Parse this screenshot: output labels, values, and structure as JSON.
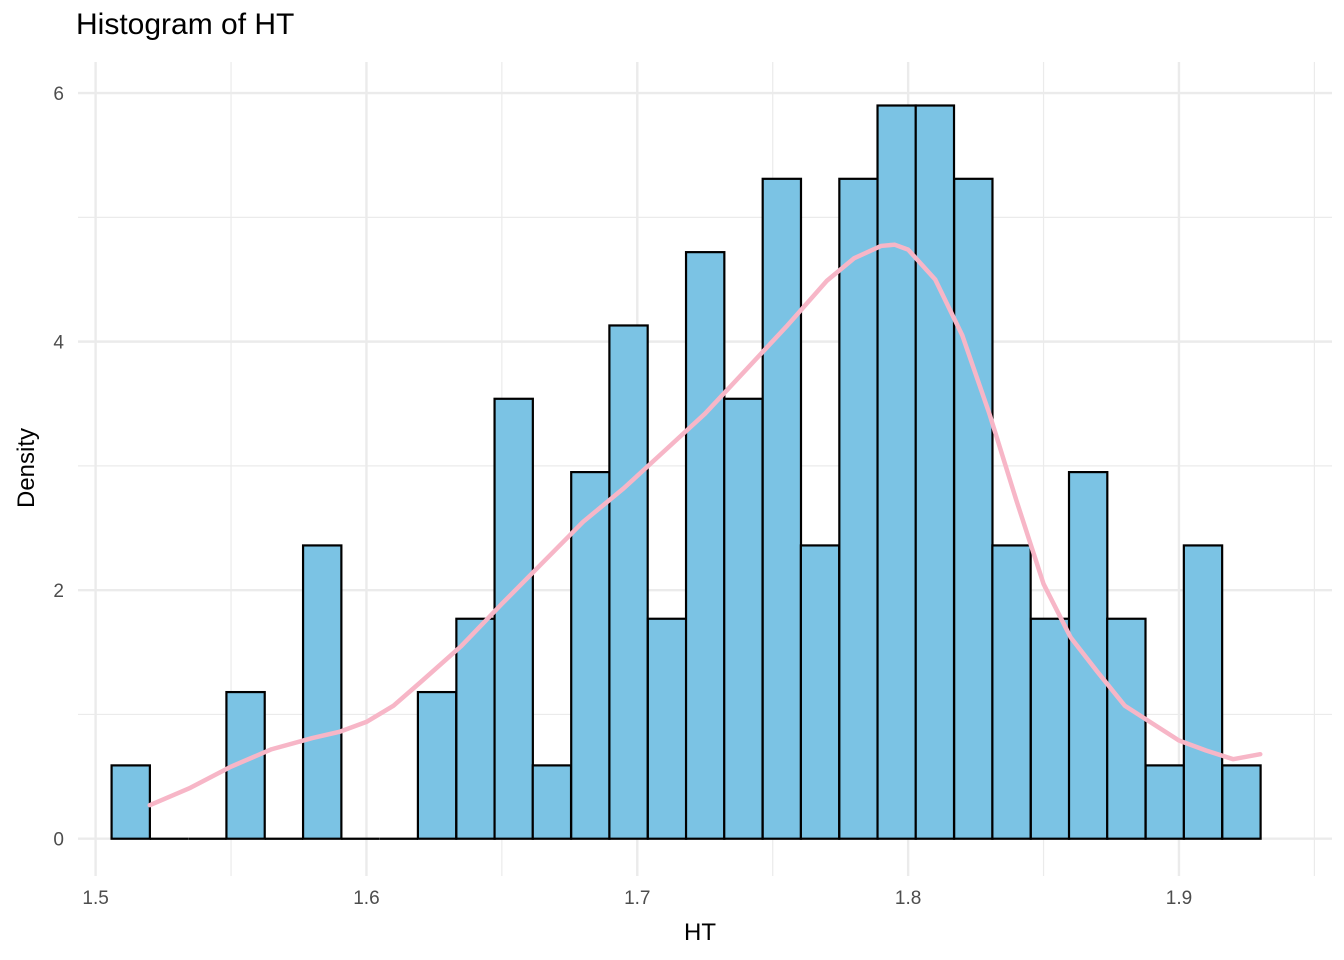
{
  "chart_data": {
    "type": "bar",
    "title": "Histogram of HT",
    "xlabel": "HT",
    "ylabel": "Density",
    "xlim": [
      1.4935,
      1.9565
    ],
    "ylim": [
      -0.3,
      6.25
    ],
    "x_ticks": [
      1.5,
      1.6,
      1.7,
      1.8,
      1.9
    ],
    "x_tick_labels": [
      "1.5",
      "1.6",
      "1.7",
      "1.8",
      "1.9"
    ],
    "y_ticks": [
      0,
      2,
      4,
      6
    ],
    "y_tick_labels": [
      "0",
      "2",
      "4",
      "6"
    ],
    "grid": true,
    "bin_width": 0.01414,
    "bins": [
      {
        "x0": 1.5059,
        "density": 0.59
      },
      {
        "x0": 1.52,
        "density": 0
      },
      {
        "x0": 1.5342,
        "density": 0
      },
      {
        "x0": 1.5483,
        "density": 1.18
      },
      {
        "x0": 1.5625,
        "density": 0
      },
      {
        "x0": 1.5766,
        "density": 2.36
      },
      {
        "x0": 1.5907,
        "density": 0
      },
      {
        "x0": 1.6049,
        "density": 0
      },
      {
        "x0": 1.619,
        "density": 1.18
      },
      {
        "x0": 1.6332,
        "density": 1.77
      },
      {
        "x0": 1.6473,
        "density": 3.54
      },
      {
        "x0": 1.6614,
        "density": 0.59
      },
      {
        "x0": 1.6756,
        "density": 2.95
      },
      {
        "x0": 1.6897,
        "density": 4.13
      },
      {
        "x0": 1.7039,
        "density": 1.77
      },
      {
        "x0": 1.718,
        "density": 4.72
      },
      {
        "x0": 1.7321,
        "density": 3.54
      },
      {
        "x0": 1.7463,
        "density": 5.31
      },
      {
        "x0": 1.7604,
        "density": 2.36
      },
      {
        "x0": 1.7746,
        "density": 5.31
      },
      {
        "x0": 1.7887,
        "density": 5.9
      },
      {
        "x0": 1.8028,
        "density": 5.9
      },
      {
        "x0": 1.817,
        "density": 5.31
      },
      {
        "x0": 1.8311,
        "density": 2.36
      },
      {
        "x0": 1.8453,
        "density": 1.77
      },
      {
        "x0": 1.8594,
        "density": 2.95
      },
      {
        "x0": 1.8735,
        "density": 1.77
      },
      {
        "x0": 1.8877,
        "density": 0.59
      },
      {
        "x0": 1.9018,
        "density": 2.36
      },
      {
        "x0": 1.916,
        "density": 0.59
      }
    ],
    "density_curve": {
      "x": [
        1.52,
        1.535,
        1.55,
        1.565,
        1.58,
        1.59,
        1.6,
        1.61,
        1.62,
        1.635,
        1.65,
        1.665,
        1.68,
        1.695,
        1.71,
        1.725,
        1.74,
        1.755,
        1.77,
        1.78,
        1.79,
        1.795,
        1.8,
        1.81,
        1.82,
        1.83,
        1.84,
        1.85,
        1.86,
        1.87,
        1.88,
        1.89,
        1.9,
        1.91,
        1.92,
        1.93
      ],
      "y": [
        0.27,
        0.41,
        0.58,
        0.72,
        0.81,
        0.86,
        0.94,
        1.07,
        1.26,
        1.55,
        1.89,
        2.22,
        2.55,
        2.82,
        3.12,
        3.42,
        3.77,
        4.12,
        4.49,
        4.67,
        4.77,
        4.78,
        4.74,
        4.5,
        4.05,
        3.42,
        2.72,
        2.05,
        1.62,
        1.34,
        1.07,
        0.93,
        0.79,
        0.71,
        0.64,
        0.68
      ]
    },
    "colors": {
      "bar_fill": "#7BC3E4",
      "bar_stroke": "#000000",
      "density_line": "#F7B6C7",
      "grid": "#EBEBEB"
    }
  }
}
